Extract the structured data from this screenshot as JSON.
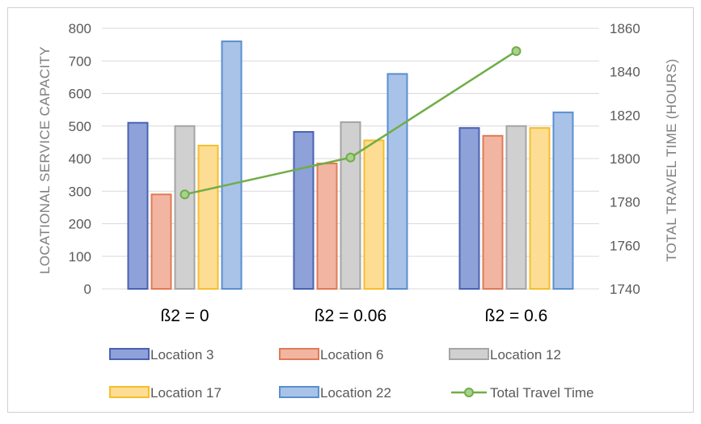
{
  "chart_data": {
    "type": "bar",
    "categories": [
      "ß2 = 0",
      "ß2 = 0.06",
      "ß2 = 0.6"
    ],
    "series": [
      {
        "name": "Location 3",
        "values": [
          510,
          482,
          494
        ],
        "color": "#8EA1D8",
        "stroke": "#4A62B3"
      },
      {
        "name": "Location 6",
        "values": [
          290,
          385,
          470
        ],
        "color": "#F2B5A1",
        "stroke": "#E07B55"
      },
      {
        "name": "Location 12",
        "values": [
          500,
          512,
          500
        ],
        "color": "#D0D0D0",
        "stroke": "#A5A5A5"
      },
      {
        "name": "Location 17",
        "values": [
          440,
          456,
          494
        ],
        "color": "#FCDD93",
        "stroke": "#F5BE2E"
      },
      {
        "name": "Location 22",
        "values": [
          760,
          660,
          542
        ],
        "color": "#A9C3E8",
        "stroke": "#5B8FCF"
      }
    ],
    "line_series": {
      "name": "Total Travel Time",
      "values": [
        1783.5,
        1800.5,
        1849.5
      ],
      "color": "#70AD47",
      "axis": "secondary"
    },
    "ylabel": "LOCATIONAL SERVICE CAPACITY",
    "y2label": "TOTAL TRAVEL TIME (HOURS)",
    "ylim": [
      0,
      800
    ],
    "y2lim": [
      1740,
      1860
    ],
    "yticks": [
      "0",
      "100",
      "200",
      "300",
      "400",
      "500",
      "600",
      "700",
      "800"
    ],
    "y2ticks": [
      "1740",
      "1760",
      "1780",
      "1800",
      "1820",
      "1840",
      "1860"
    ],
    "grid": true,
    "legend_position": "bottom"
  }
}
